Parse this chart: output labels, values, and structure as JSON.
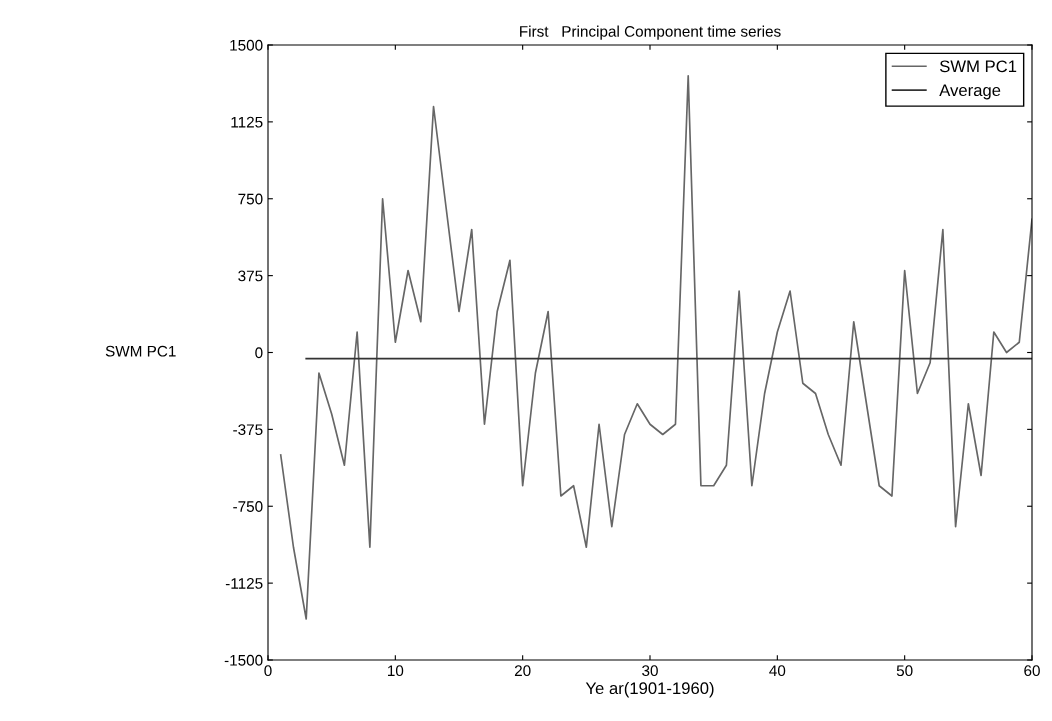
{
  "chart_data": {
    "type": "line",
    "title": "First   Principal Component time series",
    "xlabel": "Ye ar(1901-1960)",
    "ylabel": "SWM PC1",
    "xlim": [
      0,
      60
    ],
    "xticks": [
      0,
      10,
      20,
      30,
      40,
      50,
      60
    ],
    "ylim": [
      -1500,
      1500
    ],
    "yticks": [
      -1500,
      -1125,
      -750,
      -375,
      0,
      375,
      750,
      1125,
      1500
    ],
    "grid": false,
    "legend": "top right",
    "marker": "none",
    "line_style": "solid",
    "series": [
      {
        "name": "SWM PC1",
        "color": "#666666",
        "x": [
          1,
          2,
          3,
          4,
          5,
          6,
          7,
          8,
          9,
          10,
          11,
          12,
          13,
          14,
          15,
          16,
          17,
          18,
          19,
          20,
          21,
          22,
          23,
          24,
          25,
          26,
          27,
          28,
          29,
          30,
          31,
          32,
          33,
          34,
          35,
          36,
          37,
          38,
          39,
          40,
          41,
          42,
          43,
          44,
          45,
          46,
          47,
          48,
          49,
          50,
          51,
          52,
          53,
          54,
          55,
          56,
          57,
          58,
          59,
          60
        ],
        "values": [
          -500,
          -950,
          -1300,
          -100,
          -300,
          -550,
          100,
          -950,
          750,
          50,
          400,
          150,
          1200,
          700,
          200,
          600,
          -350,
          200,
          450,
          -650,
          -100,
          200,
          -700,
          -650,
          -950,
          -350,
          -850,
          -400,
          -250,
          -350,
          -400,
          -350,
          1350,
          -650,
          -650,
          -550,
          300,
          -650,
          -200,
          100,
          300,
          -150,
          -200,
          -400,
          -550,
          150,
          -250,
          -650,
          -700,
          400,
          -200,
          -50,
          600,
          -850,
          -250,
          -600,
          100,
          0,
          50,
          650
        ]
      },
      {
        "name": "Average",
        "color": "#333333",
        "x": [
          3,
          60
        ],
        "values": [
          -30,
          -30
        ]
      }
    ]
  }
}
